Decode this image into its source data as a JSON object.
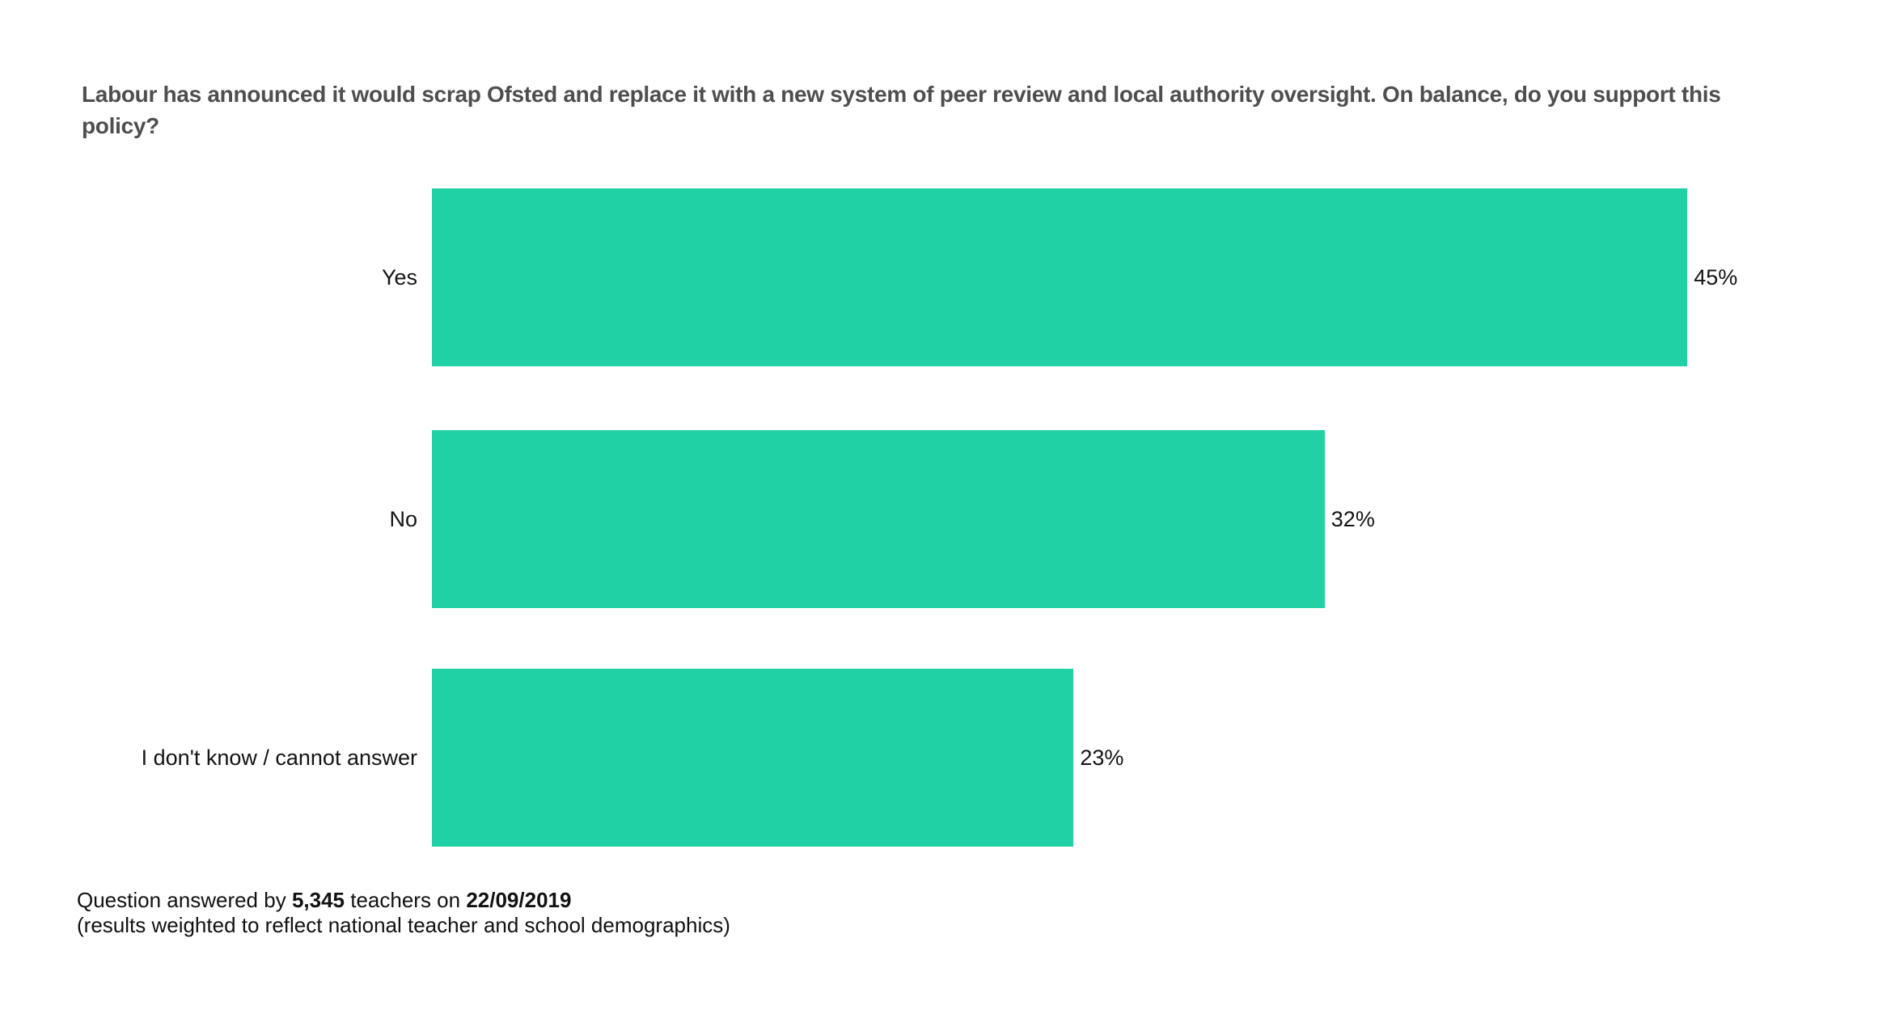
{
  "chart_data": {
    "type": "bar",
    "orientation": "horizontal",
    "title": "Labour has announced it would scrap Ofsted and replace it with a new system of peer review and local authority oversight. On balance, do you support this policy?",
    "categories": [
      "Yes",
      "No",
      "I don't know / cannot answer"
    ],
    "values": [
      45,
      32,
      23
    ],
    "value_labels": [
      "45%",
      "32%",
      "23%"
    ],
    "bar_color": "#1fd1a4",
    "xlim": [
      0,
      52.3
    ],
    "grid": false,
    "legend": false,
    "xlabel": "",
    "ylabel": ""
  },
  "footer": {
    "line1_prefix": "Question answered by ",
    "respondent_count": "5,345",
    "line1_middle": " teachers on ",
    "date": "22/09/2019",
    "line2": "(results weighted to reflect national teacher and school demographics)"
  }
}
